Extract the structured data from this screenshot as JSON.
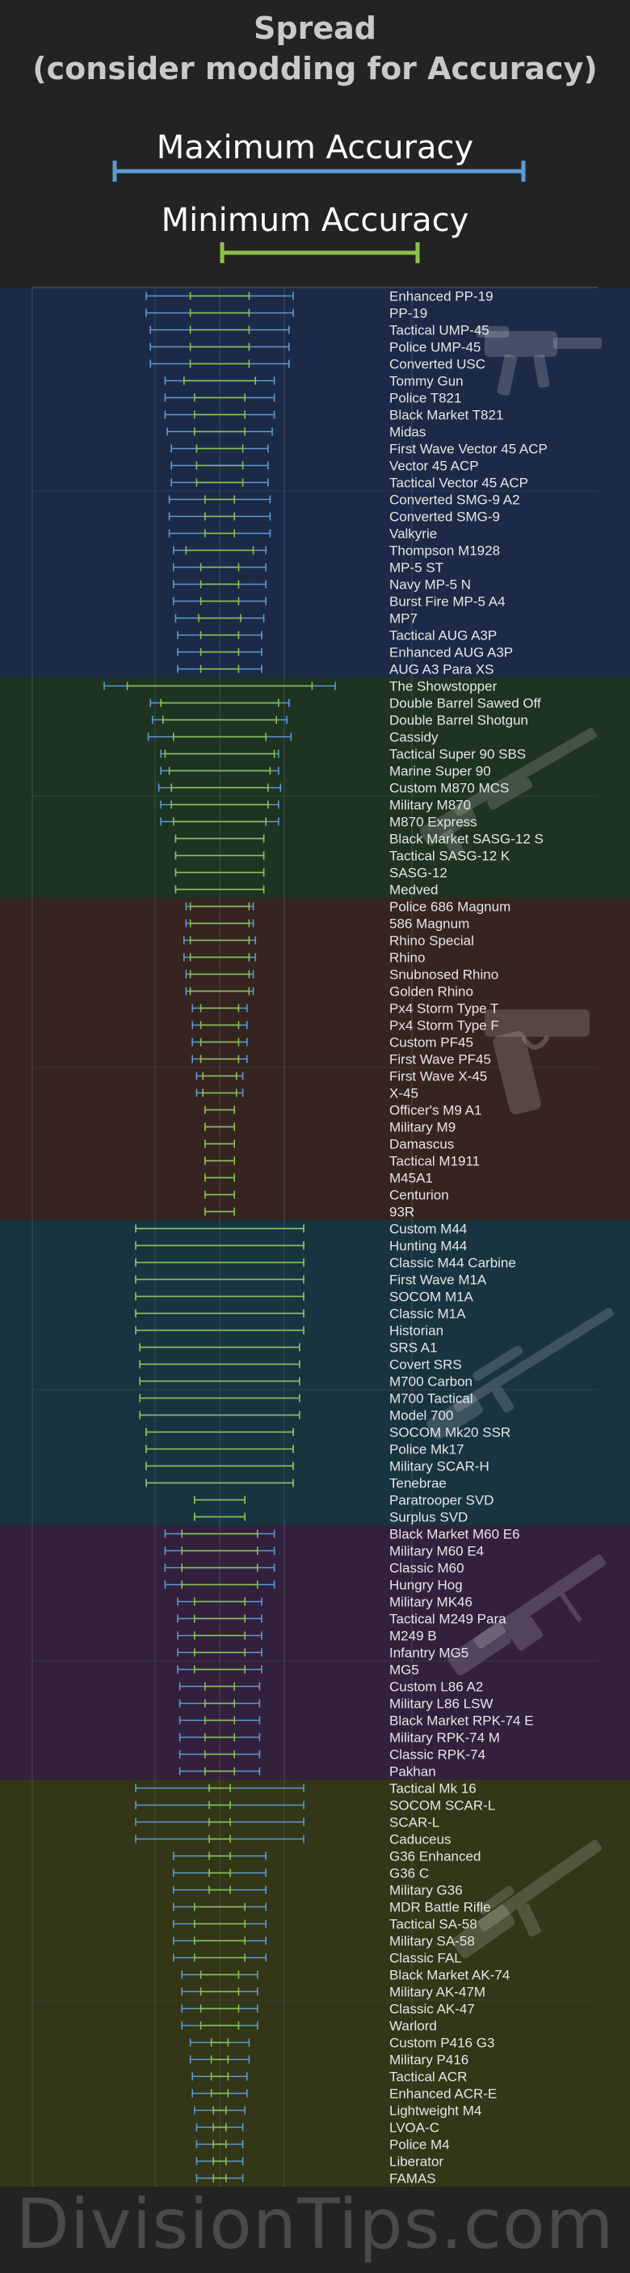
{
  "title": "Spread\n(consider modding for Accuracy)",
  "legend": {
    "max_label": "Maximum Accuracy",
    "min_label": "Minimum Accuracy",
    "max_color": "#5b9bd5",
    "min_color": "#8bc34a"
  },
  "footer": "DivisionTips.com",
  "colors": {
    "background": "#232323",
    "smg_band": "#1c2a47",
    "shotgun_band": "#1e3322",
    "pistol_band": "#362420",
    "marksman_band": "#183440",
    "lmg_band": "#33203d",
    "rifle_band": "#333617",
    "label_text": "#e6e6e6",
    "gridline": "#55606a"
  },
  "chart_data": {
    "type": "errorbar",
    "title": "Spread (consider modding for Accuracy)",
    "xlabel": "",
    "ylabel": "",
    "xlim": [
      0,
      100
    ],
    "grid": true,
    "legend_position": "top",
    "series": [
      {
        "name": "Maximum Accuracy",
        "color": "#5b9bd5"
      },
      {
        "name": "Minimum Accuracy",
        "color": "#8bc34a"
      }
    ],
    "groups": [
      {
        "category": "SMG",
        "icon": "smg-silhouette-icon",
        "weapons": [
          {
            "name": "Enhanced PP-19",
            "max": 35,
            "min": 14
          },
          {
            "name": "PP-19",
            "max": 35,
            "min": 14
          },
          {
            "name": "Tactical UMP-45",
            "max": 33,
            "min": 14
          },
          {
            "name": "Police UMP-45",
            "max": 33,
            "min": 14
          },
          {
            "name": "Converted USC",
            "max": 33,
            "min": 14
          },
          {
            "name": "Tommy Gun",
            "max": 26,
            "min": 17
          },
          {
            "name": "Police T821",
            "max": 26,
            "min": 12
          },
          {
            "name": "Black Market T821",
            "max": 26,
            "min": 12
          },
          {
            "name": "Midas",
            "max": 25,
            "min": 12
          },
          {
            "name": "First Wave Vector 45 ACP",
            "max": 23,
            "min": 11
          },
          {
            "name": "Vector 45 ACP",
            "max": 23,
            "min": 11
          },
          {
            "name": "Tactical Vector 45 ACP",
            "max": 23,
            "min": 11
          },
          {
            "name": "Converted SMG-9 A2",
            "max": 24,
            "min": 7
          },
          {
            "name": "Converted SMG-9",
            "max": 24,
            "min": 7
          },
          {
            "name": "Valkyrie",
            "max": 24,
            "min": 7
          },
          {
            "name": "Thompson M1928",
            "max": 22,
            "min": 16
          },
          {
            "name": "MP-5 ST",
            "max": 22,
            "min": 9
          },
          {
            "name": "Navy MP-5 N",
            "max": 22,
            "min": 9
          },
          {
            "name": "Burst Fire MP-5 A4",
            "max": 22,
            "min": 9
          },
          {
            "name": "MP7",
            "max": 21,
            "min": 10
          },
          {
            "name": "Tactical AUG A3P",
            "max": 20,
            "min": 9
          },
          {
            "name": "Enhanced AUG A3P",
            "max": 20,
            "min": 9
          },
          {
            "name": "AUG A3 Para XS",
            "max": 20,
            "min": 9
          }
        ]
      },
      {
        "category": "Shotgun",
        "icon": "shotgun-silhouette-icon",
        "weapons": [
          {
            "name": "The Showstopper",
            "max": 55,
            "min": 44
          },
          {
            "name": "Double Barrel Sawed Off",
            "max": 33,
            "min": 28
          },
          {
            "name": "Double Barrel Shotgun",
            "max": 32,
            "min": 27
          },
          {
            "name": "Cassidy",
            "max": 34,
            "min": 22
          },
          {
            "name": "Tactical Super 90 SBS",
            "max": 28,
            "min": 26
          },
          {
            "name": "Marine Super 90",
            "max": 28,
            "min": 24
          },
          {
            "name": "Custom M870 MCS",
            "max": 29,
            "min": 23
          },
          {
            "name": "Military M870",
            "max": 28,
            "min": 23
          },
          {
            "name": "M870 Express",
            "max": 28,
            "min": 22
          },
          {
            "name": "Black Market SASG-12 S",
            "max": 21,
            "min": 21
          },
          {
            "name": "Tactical SASG-12 K",
            "max": 21,
            "min": 21
          },
          {
            "name": "SASG-12",
            "max": 21,
            "min": 21
          },
          {
            "name": "Medved",
            "max": 21,
            "min": 21
          }
        ]
      },
      {
        "category": "Pistol",
        "icon": "pistol-silhouette-icon",
        "weapons": [
          {
            "name": "Police 686 Magnum",
            "max": 16,
            "min": 14
          },
          {
            "name": "586 Magnum",
            "max": 16,
            "min": 14
          },
          {
            "name": "Rhino Special",
            "max": 17,
            "min": 14
          },
          {
            "name": "Rhino",
            "max": 17,
            "min": 14
          },
          {
            "name": "Snubnosed Rhino",
            "max": 16,
            "min": 14
          },
          {
            "name": "Golden Rhino",
            "max": 16,
            "min": 14
          },
          {
            "name": "Px4 Storm Type T",
            "max": 13,
            "min": 9
          },
          {
            "name": "Px4 Storm Type F",
            "max": 13,
            "min": 9
          },
          {
            "name": "Custom PF45",
            "max": 13,
            "min": 9
          },
          {
            "name": "First Wave PF45",
            "max": 13,
            "min": 9
          },
          {
            "name": "First Wave X-45",
            "max": 11,
            "min": 8
          },
          {
            "name": "X-45",
            "max": 11,
            "min": 8
          },
          {
            "name": "Officer's M9 A1",
            "max": 7,
            "min": 7
          },
          {
            "name": "Military M9",
            "max": 7,
            "min": 7
          },
          {
            "name": "Damascus",
            "max": 7,
            "min": 7
          },
          {
            "name": "Tactical M1911",
            "max": 7,
            "min": 7
          },
          {
            "name": "M45A1",
            "max": 7,
            "min": 7
          },
          {
            "name": "Centurion",
            "max": 7,
            "min": 7
          },
          {
            "name": "93R",
            "max": 7,
            "min": 7
          }
        ]
      },
      {
        "category": "Marksman Rifle",
        "icon": "sniper-rifle-silhouette-icon",
        "weapons": [
          {
            "name": "Custom M44",
            "max": 40,
            "min": 40
          },
          {
            "name": "Hunting M44",
            "max": 40,
            "min": 40
          },
          {
            "name": "Classic M44 Carbine",
            "max": 40,
            "min": 40
          },
          {
            "name": "First Wave M1A",
            "max": 40,
            "min": 40
          },
          {
            "name": "SOCOM M1A",
            "max": 40,
            "min": 40
          },
          {
            "name": "Classic M1A",
            "max": 40,
            "min": 40
          },
          {
            "name": "Historian",
            "max": 40,
            "min": 40
          },
          {
            "name": "SRS A1",
            "max": 38,
            "min": 38
          },
          {
            "name": "Covert SRS",
            "max": 38,
            "min": 38
          },
          {
            "name": "M700 Carbon",
            "max": 38,
            "min": 38
          },
          {
            "name": "M700 Tactical",
            "max": 38,
            "min": 38
          },
          {
            "name": "Model 700",
            "max": 38,
            "min": 38
          },
          {
            "name": "SOCOM Mk20 SSR",
            "max": 35,
            "min": 35
          },
          {
            "name": "Police Mk17",
            "max": 35,
            "min": 35
          },
          {
            "name": "Military SCAR-H",
            "max": 35,
            "min": 35
          },
          {
            "name": "Tenebrae",
            "max": 35,
            "min": 35
          },
          {
            "name": "Paratrooper SVD",
            "max": 12,
            "min": 12
          },
          {
            "name": "Surplus SVD",
            "max": 12,
            "min": 12
          }
        ]
      },
      {
        "category": "LMG",
        "icon": "lmg-silhouette-icon",
        "weapons": [
          {
            "name": "Black Market M60 E6",
            "max": 26,
            "min": 18
          },
          {
            "name": "Military M60 E4",
            "max": 26,
            "min": 18
          },
          {
            "name": "Classic M60",
            "max": 26,
            "min": 18
          },
          {
            "name": "Hungry Hog",
            "max": 26,
            "min": 18
          },
          {
            "name": "Military MK46",
            "max": 20,
            "min": 12
          },
          {
            "name": "Tactical M249 Para",
            "max": 20,
            "min": 12
          },
          {
            "name": "M249 B",
            "max": 20,
            "min": 12
          },
          {
            "name": "Infantry MG5",
            "max": 20,
            "min": 12
          },
          {
            "name": "MG5",
            "max": 20,
            "min": 12
          },
          {
            "name": "Custom L86 A2",
            "max": 19,
            "min": 7
          },
          {
            "name": "Military L86 LSW",
            "max": 19,
            "min": 7
          },
          {
            "name": "Black Market RPK-74 E",
            "max": 19,
            "min": 7
          },
          {
            "name": "Military RPK-74 M",
            "max": 19,
            "min": 7
          },
          {
            "name": "Classic RPK-74",
            "max": 19,
            "min": 7
          },
          {
            "name": "Pakhan",
            "max": 19,
            "min": 7
          }
        ]
      },
      {
        "category": "Assault Rifle",
        "icon": "assault-rifle-silhouette-icon",
        "weapons": [
          {
            "name": "Tactical Mk 16",
            "max": 40,
            "min": 5
          },
          {
            "name": "SOCOM SCAR-L",
            "max": 40,
            "min": 5
          },
          {
            "name": "SCAR-L",
            "max": 40,
            "min": 5
          },
          {
            "name": "Caduceus",
            "max": 40,
            "min": 5
          },
          {
            "name": "G36 Enhanced",
            "max": 22,
            "min": 5
          },
          {
            "name": "G36 C",
            "max": 22,
            "min": 5
          },
          {
            "name": "Military G36",
            "max": 22,
            "min": 5
          },
          {
            "name": "MDR Battle Rifle",
            "max": 22,
            "min": 12
          },
          {
            "name": "Tactical SA-58",
            "max": 22,
            "min": 12
          },
          {
            "name": "Military SA-58",
            "max": 22,
            "min": 12
          },
          {
            "name": "Classic FAL",
            "max": 22,
            "min": 12
          },
          {
            "name": "Black Market AK-74",
            "max": 18,
            "min": 9
          },
          {
            "name": "Military AK-47M",
            "max": 18,
            "min": 9
          },
          {
            "name": "Classic AK-47",
            "max": 18,
            "min": 9
          },
          {
            "name": "Warlord",
            "max": 18,
            "min": 9
          },
          {
            "name": "Custom P416 G3",
            "max": 14,
            "min": 4
          },
          {
            "name": "Military P416",
            "max": 14,
            "min": 4
          },
          {
            "name": "Tactical ACR",
            "max": 13,
            "min": 4
          },
          {
            "name": "Enhanced ACR-E",
            "max": 13,
            "min": 4
          },
          {
            "name": "Lightweight M4",
            "max": 12,
            "min": 3
          },
          {
            "name": "LVOA-C",
            "max": 11,
            "min": 3
          },
          {
            "name": "Police M4",
            "max": 11,
            "min": 3
          },
          {
            "name": "Liberator",
            "max": 11,
            "min": 3
          },
          {
            "name": "FAMAS",
            "max": 11,
            "min": 3
          }
        ]
      }
    ]
  }
}
